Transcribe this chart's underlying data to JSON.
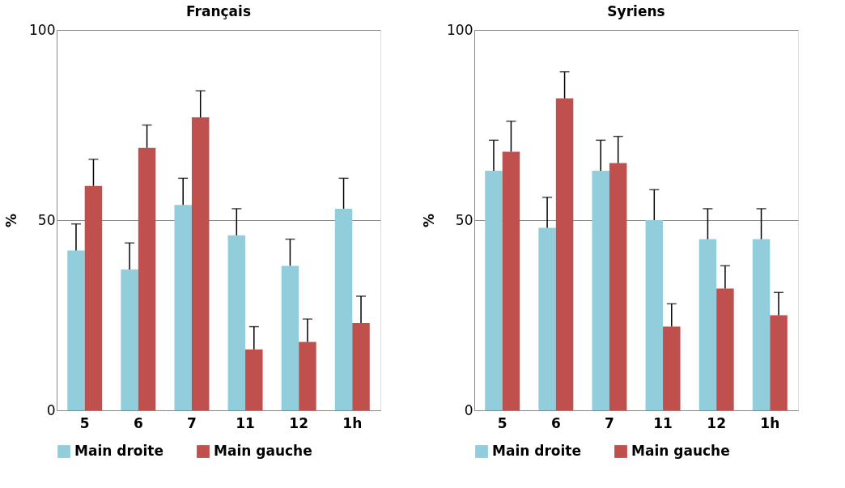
{
  "chart_data": [
    {
      "type": "bar",
      "title": "Français",
      "ylabel": "%",
      "categories": [
        "5",
        "6",
        "7",
        "11",
        "12",
        "1h"
      ],
      "ylim": [
        0,
        100
      ],
      "yticks": [
        0,
        50,
        100
      ],
      "grid": "y",
      "legend": "bottom",
      "series": [
        {
          "name": "Main droite",
          "color": "#92cddc",
          "values": [
            42,
            37,
            54,
            46,
            38,
            53
          ],
          "errors": [
            [
              42,
              49
            ],
            [
              37,
              44
            ],
            [
              54,
              61
            ],
            [
              46,
              53
            ],
            [
              38,
              45
            ],
            [
              53,
              61
            ]
          ]
        },
        {
          "name": "Main gauche",
          "color": "#c0504d",
          "values": [
            59,
            69,
            77,
            16,
            18,
            23
          ],
          "errors": [
            [
              59,
              66
            ],
            [
              69,
              75
            ],
            [
              77,
              84
            ],
            [
              16,
              22
            ],
            [
              18,
              24
            ],
            [
              23,
              30
            ]
          ]
        }
      ]
    },
    {
      "type": "bar",
      "title": "Syriens",
      "ylabel": "%",
      "categories": [
        "5",
        "6",
        "7",
        "11",
        "12",
        "1h"
      ],
      "ylim": [
        0,
        100
      ],
      "yticks": [
        0,
        50,
        100
      ],
      "grid": "y",
      "legend": "bottom",
      "series": [
        {
          "name": "Main droite",
          "color": "#92cddc",
          "values": [
            63,
            48,
            63,
            50,
            45,
            45
          ],
          "errors": [
            [
              63,
              71
            ],
            [
              48,
              56
            ],
            [
              63,
              71
            ],
            [
              50,
              58
            ],
            [
              45,
              53
            ],
            [
              45,
              53
            ]
          ]
        },
        {
          "name": "Main gauche",
          "color": "#c0504d",
          "values": [
            68,
            82,
            65,
            22,
            32,
            25
          ],
          "errors": [
            [
              68,
              76
            ],
            [
              82,
              89
            ],
            [
              65,
              72
            ],
            [
              22,
              28
            ],
            [
              32,
              38
            ],
            [
              25,
              31
            ]
          ]
        }
      ]
    }
  ]
}
